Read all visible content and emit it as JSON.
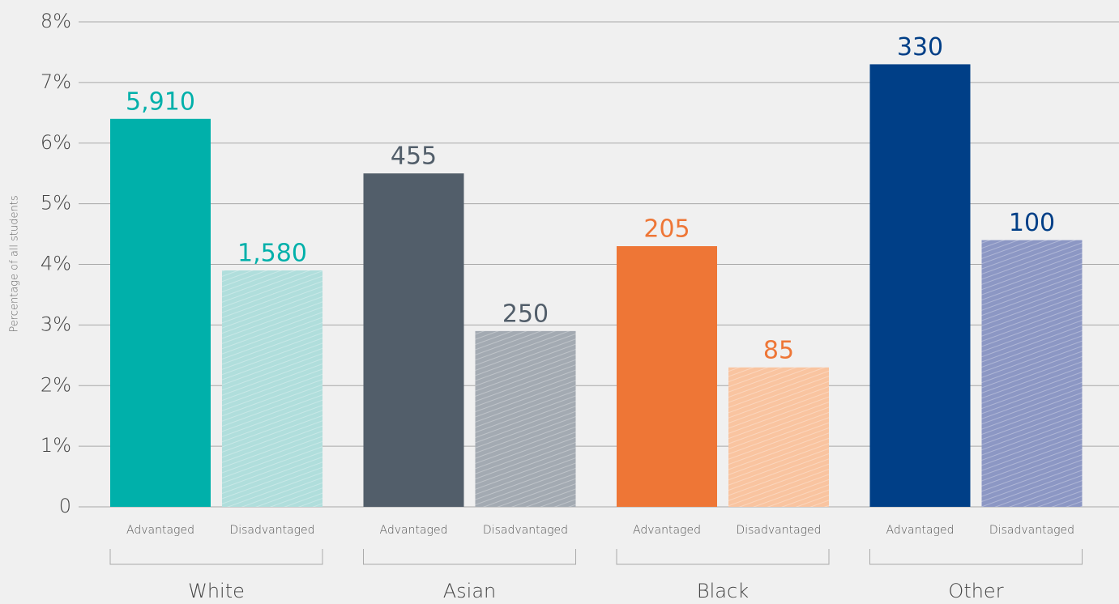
{
  "chart_data": {
    "type": "grouped_bar",
    "y_label": "Percentage of all students",
    "categories": [
      "White",
      "Asian",
      "Black",
      "Other"
    ],
    "series": [
      {
        "name": "Advantaged",
        "colors": [
          "#00b0aa",
          "#525e6a",
          "#ee7636",
          "#003f87"
        ],
        "label_colors": [
          "#00b0aa",
          "#525e6a",
          "#ee7636",
          "#003f87"
        ],
        "values": [
          6.4,
          5.5,
          4.3,
          7.3
        ],
        "labels": [
          "5,910",
          "455",
          "205",
          "330"
        ]
      },
      {
        "name": "Disadvantaged",
        "colors": [
          "#b0dedc",
          "#a3aab2",
          "#f9c4a0",
          "#8c97c4"
        ],
        "label_colors": [
          "#00b0aa",
          "#525e6a",
          "#ee7636",
          "#003f87"
        ],
        "values": [
          3.9,
          2.9,
          2.3,
          4.4
        ],
        "labels": [
          "1,580",
          "250",
          "85",
          "100"
        ]
      }
    ],
    "ylim": [
      0,
      8
    ],
    "yticks": [
      0,
      {
        "value": 1,
        "label": "1%"
      },
      {
        "value": 2,
        "label": "2%"
      },
      {
        "value": 3,
        "label": "3%"
      },
      {
        "value": 4,
        "label": "4%"
      },
      {
        "value": 5,
        "label": "5%"
      },
      {
        "value": 6,
        "label": "6%"
      },
      {
        "value": 7,
        "label": "7%"
      },
      {
        "value": 8,
        "label": "8%"
      }
    ],
    "grid": true
  }
}
